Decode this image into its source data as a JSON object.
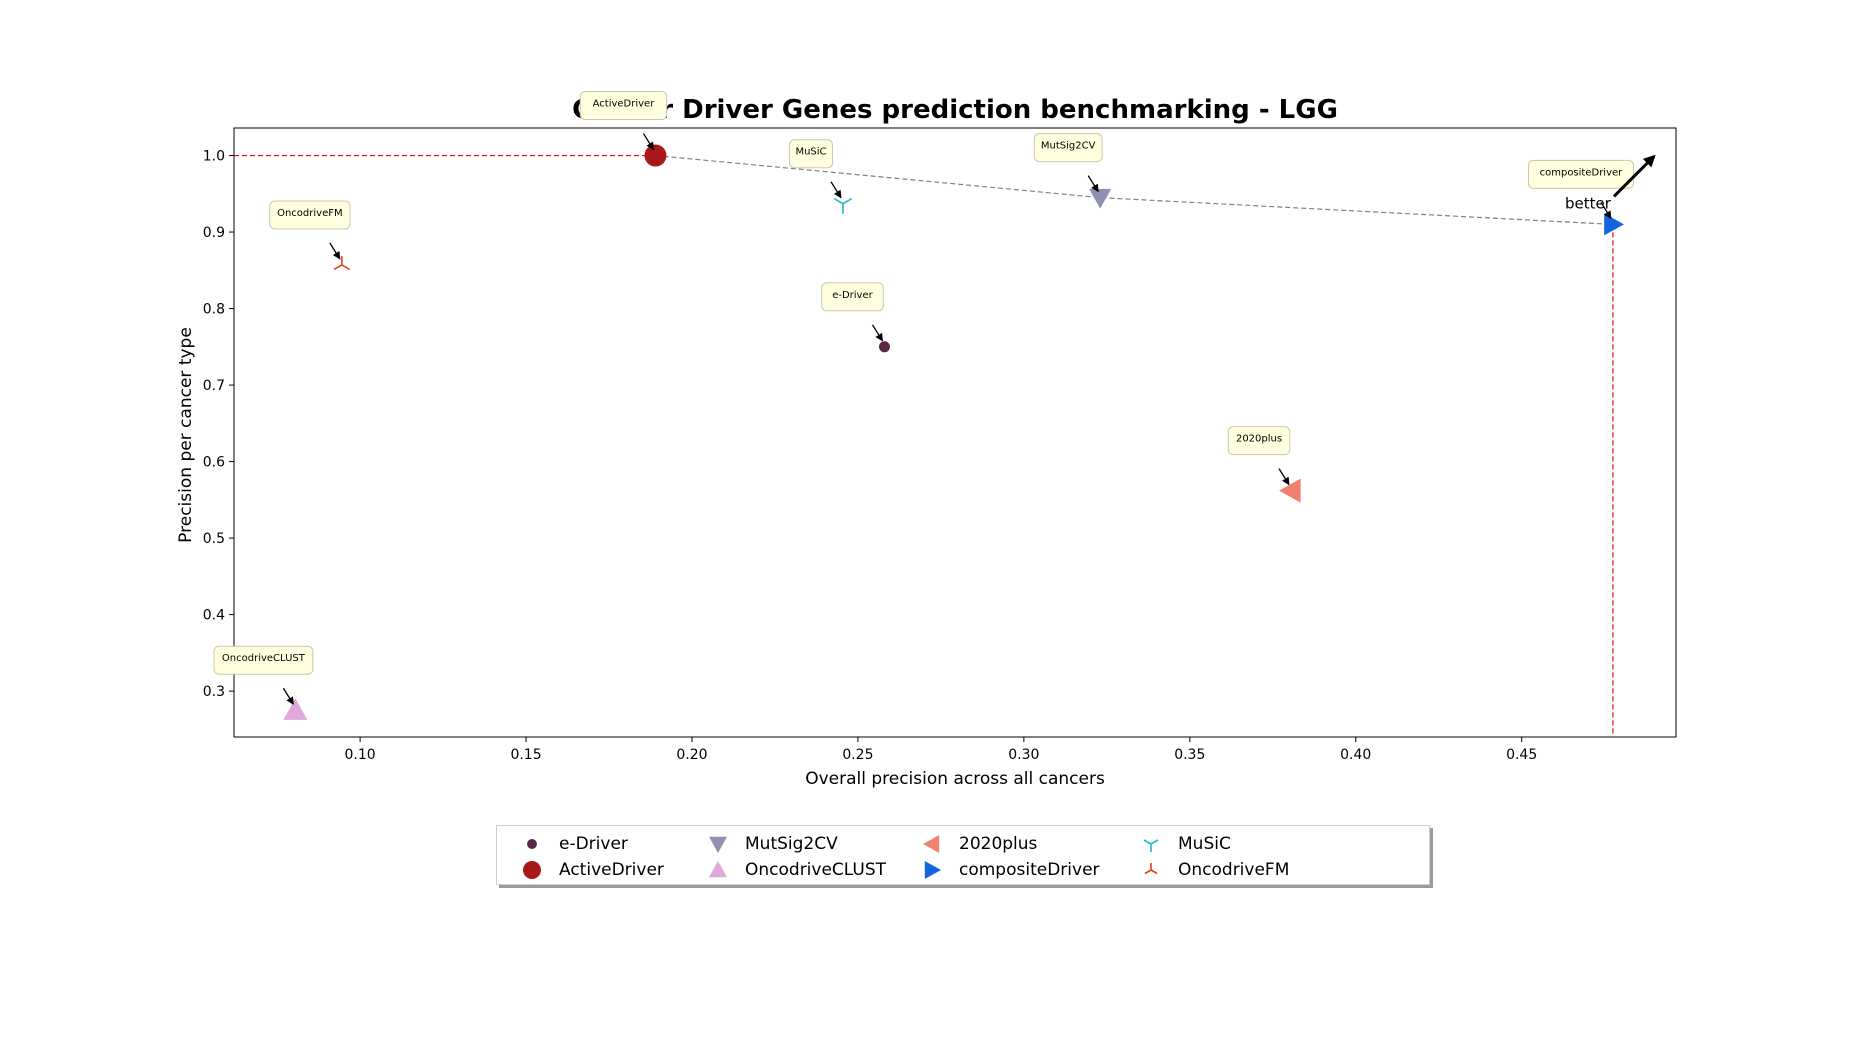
{
  "chart_data": {
    "type": "scatter",
    "title": "Cancer Driver Genes prediction benchmarking - LGG",
    "xlabel": "Overall precision across all cancers",
    "ylabel": "Precision per cancer type",
    "xlim": [
      0.062,
      0.4965
    ],
    "ylim": [
      0.24,
      1.036
    ],
    "xticks": [
      "0.10",
      "0.15",
      "0.20",
      "0.25",
      "0.30",
      "0.35",
      "0.40",
      "0.45"
    ],
    "yticks": [
      "0.3",
      "0.4",
      "0.5",
      "0.6",
      "0.7",
      "0.8",
      "0.9",
      "1.0"
    ],
    "series": [
      {
        "name": "e-Driver",
        "x": 0.258,
        "y": 0.75,
        "marker": "circle-small",
        "color": "#5a2a45",
        "label": "e-Driver"
      },
      {
        "name": "ActiveDriver",
        "x": 0.189,
        "y": 1.0,
        "marker": "circle",
        "color": "#a81818",
        "label": "ActiveDriver"
      },
      {
        "name": "MutSig2CV",
        "x": 0.323,
        "y": 0.945,
        "marker": "triangle-down",
        "color": "#9090b0",
        "label": "MutSig2CV"
      },
      {
        "name": "OncodriveCLUST",
        "x": 0.0805,
        "y": 0.275,
        "marker": "triangle-up",
        "color": "#e0a8d8",
        "label": "OncodriveCLUST"
      },
      {
        "name": "2020plus",
        "x": 0.3805,
        "y": 0.562,
        "marker": "triangle-left",
        "color": "#f08070",
        "label": "2020plus"
      },
      {
        "name": "compositeDriver",
        "x": 0.4775,
        "y": 0.91,
        "marker": "triangle-right",
        "color": "#1565e0",
        "label": "compositeDriver"
      },
      {
        "name": "MuSiC",
        "x": 0.2455,
        "y": 0.937,
        "marker": "tri-down",
        "color": "#20b8c8",
        "label": "MuSiC"
      },
      {
        "name": "OncodriveFM",
        "x": 0.0945,
        "y": 0.857,
        "marker": "tri-up",
        "color": "#e04020",
        "label": "OncodriveFM"
      }
    ],
    "pareto_front": [
      [
        0.189,
        1.0
      ],
      [
        0.323,
        0.945
      ],
      [
        0.4775,
        0.91
      ]
    ],
    "reference_lines": {
      "best_y": 1.0,
      "best_x": 0.4775
    },
    "annotation": "better",
    "legend_placement": "bottom-center"
  },
  "colors": {
    "reference_line": "#ff0000",
    "pareto_line": "#808080",
    "label_box_fill": "#ffffe0",
    "label_box_border": "#c8c8a8"
  }
}
